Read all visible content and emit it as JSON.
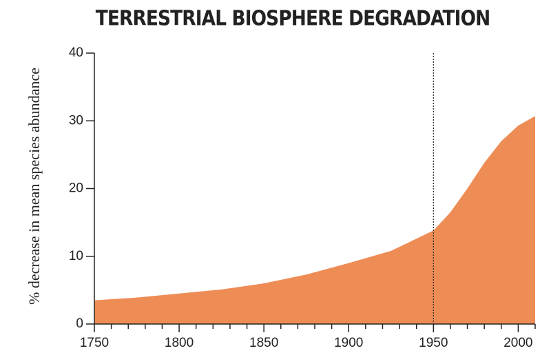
{
  "chart_data": {
    "type": "area",
    "title": "TERRESTRIAL BIOSPHERE DEGRADATION",
    "y_label": "% decrease in mean species abundance",
    "x": [
      1750,
      1775,
      1800,
      1825,
      1850,
      1875,
      1900,
      1925,
      1950,
      1960,
      1970,
      1980,
      1990,
      2000,
      2010
    ],
    "values": [
      3.5,
      3.9,
      4.5,
      5.1,
      6.0,
      7.3,
      9.0,
      10.8,
      13.8,
      16.5,
      20.0,
      23.8,
      27.0,
      29.3,
      30.7
    ],
    "color": "#ee8c56",
    "xlim": [
      1750,
      2010
    ],
    "xticks": [
      1750,
      1800,
      1850,
      1900,
      1950,
      2000
    ],
    "xminorticks": [
      1760,
      1770,
      1780,
      1790,
      1810,
      1820,
      1830,
      1840,
      1860,
      1870,
      1880,
      1890,
      1910,
      1920,
      1930,
      1940,
      1960,
      1970,
      1980,
      1990,
      2010
    ],
    "ylim": [
      0,
      40
    ],
    "yticks": [
      0,
      10,
      20,
      30,
      40
    ],
    "vline": 1950,
    "grid": false
  }
}
